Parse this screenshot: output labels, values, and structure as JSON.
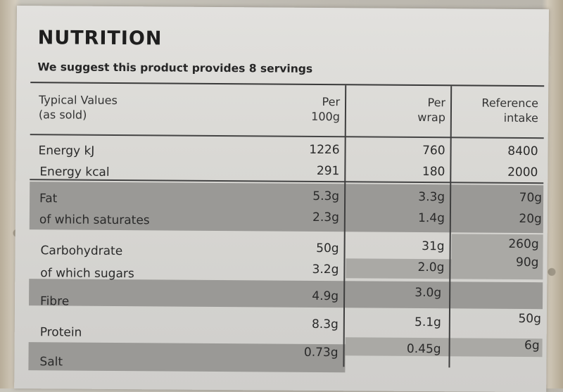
{
  "title": "NUTRITION",
  "subtitle": "We suggest this product provides 8 servings",
  "headers": {
    "typical": [
      "Typical Values",
      "(as sold)"
    ],
    "per100": [
      "Per",
      "100g"
    ],
    "perwrap": [
      "Per",
      "wrap"
    ],
    "ri": [
      "Reference",
      "intake"
    ]
  },
  "rows": [
    {
      "label": "Energy kJ",
      "per100": "1226",
      "perwrap": "760",
      "ri": "8400"
    },
    {
      "label": "Energy kcal",
      "per100": "291",
      "perwrap": "180",
      "ri": "2000"
    },
    {
      "label": "Fat",
      "per100": "5.3g",
      "perwrap": "3.3g",
      "ri": "70g"
    },
    {
      "label": "of which saturates",
      "per100": "2.3g",
      "perwrap": "1.4g",
      "ri": "20g"
    },
    {
      "label": "Carbohydrate",
      "per100": "50g",
      "perwrap": "31g",
      "ri": "260g"
    },
    {
      "label": "of which sugars",
      "per100": "3.2g",
      "perwrap": "2.0g",
      "ri": "90g"
    },
    {
      "label": "Fibre",
      "per100": "4.9g",
      "perwrap": "3.0g",
      "ri": ""
    },
    {
      "label": "Protein",
      "per100": "8.3g",
      "perwrap": "5.1g",
      "ri": "50g"
    },
    {
      "label": "Salt",
      "per100": "0.73g",
      "perwrap": "0.45g",
      "ri": "6g"
    }
  ]
}
